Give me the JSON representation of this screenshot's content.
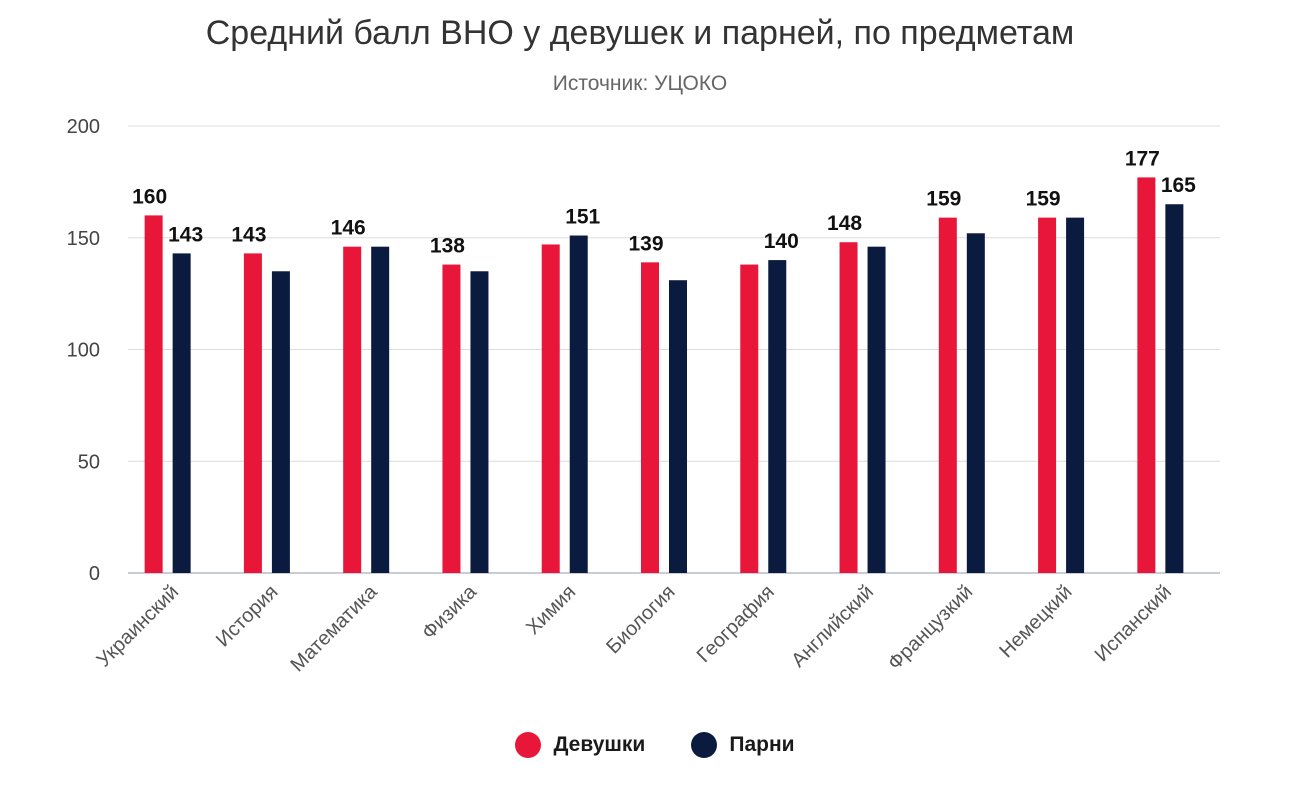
{
  "chart_data": {
    "type": "bar",
    "title": "Средний балл ВНО у девушек и парней, по предметам",
    "subtitle": "Источник: УЦОКО",
    "xlabel": "",
    "ylabel": "",
    "ylim": [
      0,
      200
    ],
    "yticks": [
      0,
      50,
      100,
      150,
      200
    ],
    "grid": true,
    "legend_position": "bottom",
    "categories": [
      "Украинский",
      "История",
      "Математика",
      "Физика",
      "Химия",
      "Биология",
      "География",
      "Английский",
      "Французкий",
      "Немецкий",
      "Испанский"
    ],
    "series": [
      {
        "name": "Девушки",
        "color": "#e8173a",
        "values": [
          160,
          143,
          146,
          138,
          147,
          139,
          138,
          148,
          159,
          159,
          177
        ],
        "labels": [
          "160",
          "143",
          "146",
          "138",
          "",
          "139",
          "",
          "148",
          "159",
          "159",
          "177"
        ]
      },
      {
        "name": "Парни",
        "color": "#0b1a3f",
        "values": [
          143,
          135,
          146,
          135,
          151,
          131,
          140,
          146,
          152,
          159,
          165
        ],
        "labels": [
          "143",
          "",
          "",
          "",
          "151",
          "",
          "140",
          "",
          "",
          "",
          "165"
        ]
      }
    ]
  }
}
